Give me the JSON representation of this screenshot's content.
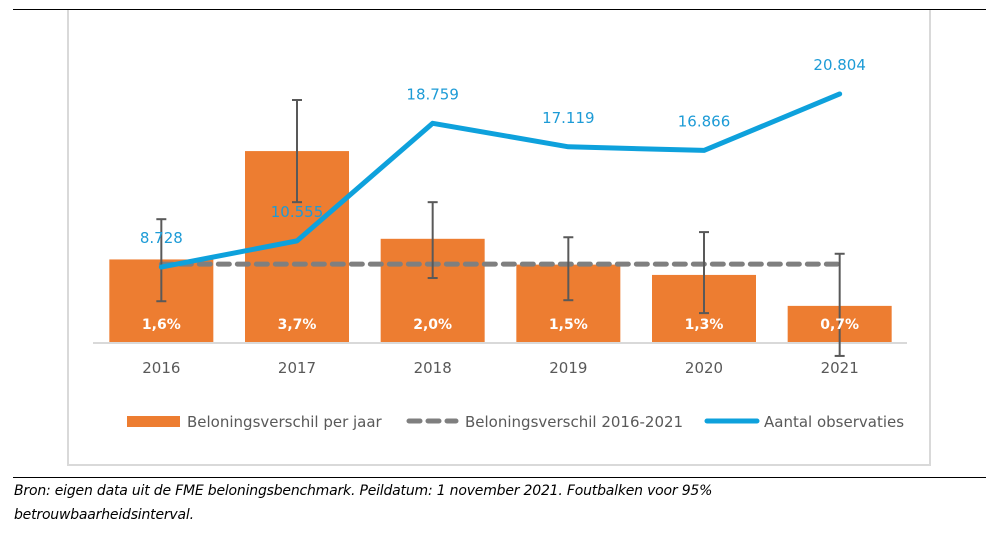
{
  "chart_data": {
    "type": "bar",
    "title": "",
    "xlabel": "",
    "ylabel": "",
    "categories": [
      "2016",
      "2017",
      "2018",
      "2019",
      "2020",
      "2021"
    ],
    "ylim": [
      0,
      5
    ],
    "y2lim": [
      3500,
      21500
    ],
    "grid": false,
    "legend_position": "bottom",
    "series": [
      {
        "name": "Beloningsverschil per jaar",
        "kind": "bar",
        "axis": "primary",
        "color": "#ED7D31",
        "values": [
          1.6,
          3.7,
          2.0,
          1.5,
          1.3,
          0.7
        ],
        "labels": [
          "1,6%",
          "3,7%",
          "2,0%",
          "1,5%",
          "1,3%",
          "0,7%"
        ],
        "error_low": [
          0.79,
          2.71,
          1.24,
          0.81,
          0.56,
          -0.27
        ],
        "error_high": [
          2.38,
          4.69,
          2.71,
          2.03,
          2.13,
          1.71
        ]
      },
      {
        "name": "Beloningsverschil 2016-2021",
        "kind": "dashed-line",
        "axis": "primary",
        "color": "#7F7F7F",
        "values": [
          1.51,
          1.51,
          1.51,
          1.51,
          1.51,
          1.51
        ]
      },
      {
        "name": "Aantal observaties",
        "kind": "line",
        "axis": "secondary",
        "color": "#0EA1DC",
        "values": [
          8728,
          10555,
          18759,
          17119,
          16866,
          20804
        ],
        "labels": [
          "8.728",
          "10.555",
          "18.759",
          "17.119",
          "16.866",
          "20.804"
        ]
      }
    ],
    "legend": [
      "Beloningsverschil per jaar",
      "Beloningsverschil 2016-2021",
      "Aantal observaties"
    ]
  },
  "colors": {
    "bar": "#ED7D31",
    "line": "#0EA1DC",
    "dash": "#7F7F7F",
    "error": "#595959",
    "axis": "#D9D9D9"
  },
  "caption": {
    "line1": "Bron: eigen data uit de FME beloningsbenchmark. Peildatum: 1 november 2021. Foutbalken voor 95%",
    "line2": "betrouwbaarheidsinterval."
  }
}
